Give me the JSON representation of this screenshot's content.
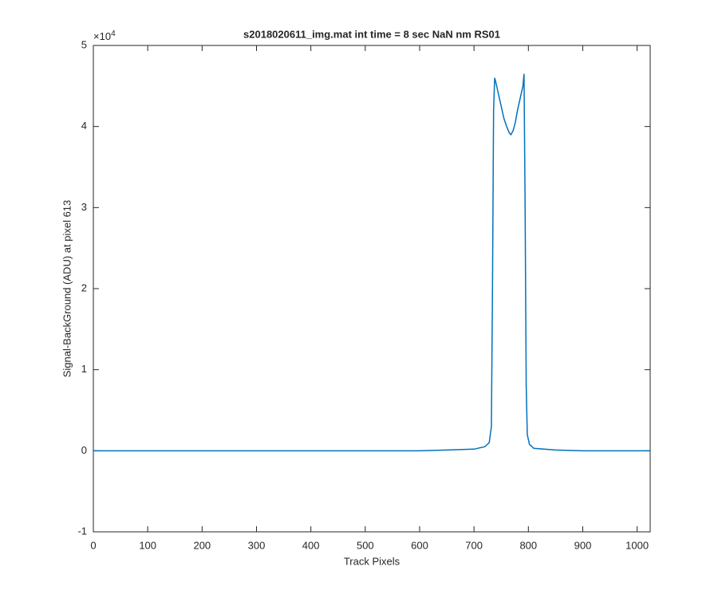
{
  "chart_data": {
    "type": "line",
    "title": "s2018020611_img.mat int time = 8 sec  NaN nm RS01",
    "x_label": "Track Pixels",
    "y_label": "Signal-BackGround (ADU) at pixel 613",
    "y_multiplier": {
      "base": "×10",
      "exponent": "4"
    },
    "x": [
      0,
      50,
      100,
      150,
      200,
      250,
      300,
      350,
      400,
      450,
      500,
      550,
      600,
      650,
      700,
      720,
      728,
      732,
      734,
      736,
      738,
      740,
      745,
      750,
      755,
      760,
      765,
      768,
      772,
      776,
      780,
      785,
      790,
      792,
      794,
      796,
      798,
      802,
      810,
      850,
      900,
      950,
      1000,
      1024
    ],
    "series": [
      {
        "name": "Signal-BackGround",
        "color": "#0072bd",
        "values": [
          0.0,
          0.0,
          0.0,
          0.0,
          0.0,
          0.0,
          0.0,
          0.0,
          0.0,
          0.0,
          0.0,
          0.0,
          0.0,
          0.01,
          0.02,
          0.05,
          0.1,
          0.3,
          2.0,
          4.2,
          4.6,
          4.55,
          4.4,
          4.25,
          4.1,
          4.0,
          3.92,
          3.9,
          3.95,
          4.05,
          4.2,
          4.35,
          4.5,
          4.65,
          3.0,
          0.8,
          0.2,
          0.08,
          0.03,
          0.01,
          0.0,
          0.0,
          0.0,
          0.0
        ]
      }
    ],
    "xlim": [
      0,
      1024
    ],
    "xticks": [
      0,
      100,
      200,
      300,
      400,
      500,
      600,
      700,
      800,
      900,
      1000
    ],
    "ylim": [
      -1,
      5
    ],
    "yticks": [
      -1,
      0,
      1,
      2,
      3,
      4,
      5
    ],
    "grid": false
  }
}
